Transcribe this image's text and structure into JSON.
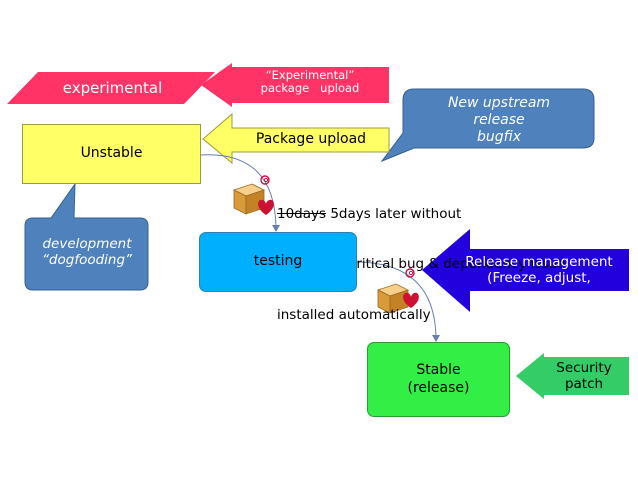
{
  "experimental_label": "experimental",
  "exp_upload_label": "“Experimental”\npackage   upload",
  "upstream_callout": "New upstream\nrelease\nbugfix",
  "package_upload_label": "Package upload",
  "unstable_label": "Unstable",
  "dogfooding_callout": "development\n“dogfooding”",
  "migration_note": {
    "struck": "10days",
    "rest": " 5days later without",
    "line2": "   Release Critical bug & dependency issue,",
    "line3": "installed automatically"
  },
  "testing_label": "testing",
  "release_mgmt_label": "Release management\n(Freeze, adjust,",
  "stable_label": "Stable\n(release)",
  "security_patch_label": "Security\npatch",
  "colors": {
    "experimental": "#ff3366",
    "unstable": "#ffff66",
    "testing": "#00b0ff",
    "stable": "#33ee44",
    "callout": "#4f81bd",
    "release_mgmt": "#2200dd",
    "security": "#33cc66"
  },
  "icons": [
    "debian-swirl-icon",
    "package-box-icon",
    "heart-icon"
  ]
}
